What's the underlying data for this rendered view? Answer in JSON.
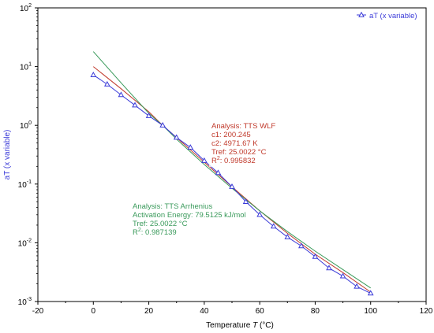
{
  "chart_data": {
    "type": "scatter",
    "title": "",
    "xlabel_prefix": "Temperature ",
    "xlabel_symbol": "T",
    "xlabel_unit": " (°C)",
    "ylabel": "aT (x variable)",
    "x_ticks": [
      "-20",
      "0",
      "20",
      "40",
      "60",
      "80",
      "100",
      "120"
    ],
    "y_tick_exponents": [
      "2",
      "1",
      "0",
      "-1",
      "-2",
      "-3"
    ],
    "xlim": [
      -20,
      120
    ],
    "ylim_log10": [
      -3,
      2
    ],
    "log_y": true,
    "legend": {
      "label": "aT (x variable)",
      "position": "top-right"
    },
    "colors": {
      "data": "#3a3ad8",
      "wlf": "#c0392b",
      "arrhenius": "#3a9a5b",
      "axis": "#000000",
      "axis_title": "#3a3ad8"
    },
    "series": [
      {
        "name": "aT (x variable)",
        "kind": "markers-line",
        "marker": "triangle",
        "x": [
          0,
          5,
          10,
          15,
          20,
          25,
          30,
          35,
          40,
          45,
          50,
          55,
          60,
          65,
          70,
          75,
          80,
          85,
          90,
          95,
          100
        ],
        "y": [
          7.2,
          5.0,
          3.3,
          2.2,
          1.45,
          1.0,
          0.62,
          0.42,
          0.25,
          0.155,
          0.09,
          0.05,
          0.03,
          0.019,
          0.0125,
          0.0088,
          0.0058,
          0.0037,
          0.0027,
          0.0018,
          0.00138
        ]
      },
      {
        "kind": "fit-line",
        "fit": "wlf",
        "x": [
          0,
          10,
          20,
          25,
          30,
          40,
          50,
          60,
          70,
          80,
          90,
          100
        ],
        "y": [
          10.0,
          4.2,
          1.7,
          1.0,
          0.62,
          0.235,
          0.09,
          0.035,
          0.0145,
          0.0064,
          0.0031,
          0.00145
        ]
      },
      {
        "kind": "fit-line",
        "fit": "arrhenius",
        "x": [
          0,
          10,
          20,
          25,
          30,
          40,
          50,
          60,
          70,
          80,
          90,
          100
        ],
        "y": [
          18.0,
          5.3,
          1.6,
          1.0,
          0.58,
          0.215,
          0.085,
          0.035,
          0.0155,
          0.0072,
          0.0035,
          0.0017
        ]
      }
    ],
    "annotations": [
      {
        "fit": "wlf",
        "lines": [
          "Analysis: TTS WLF",
          "c1: 200.245",
          "c2: 4971.67 K",
          "Tref: 25.0022 °C"
        ],
        "r2_base": "R",
        "r2_exp": "2",
        "r2_value": ": 0.995832"
      },
      {
        "fit": "arrhenius",
        "lines": [
          "Analysis: TTS Arrhenius",
          "Activation Energy: 79.5125 kJ/mol",
          "Tref: 25.0022 °C"
        ],
        "r2_base": "R",
        "r2_exp": "2",
        "r2_value": ": 0.987139"
      }
    ]
  }
}
